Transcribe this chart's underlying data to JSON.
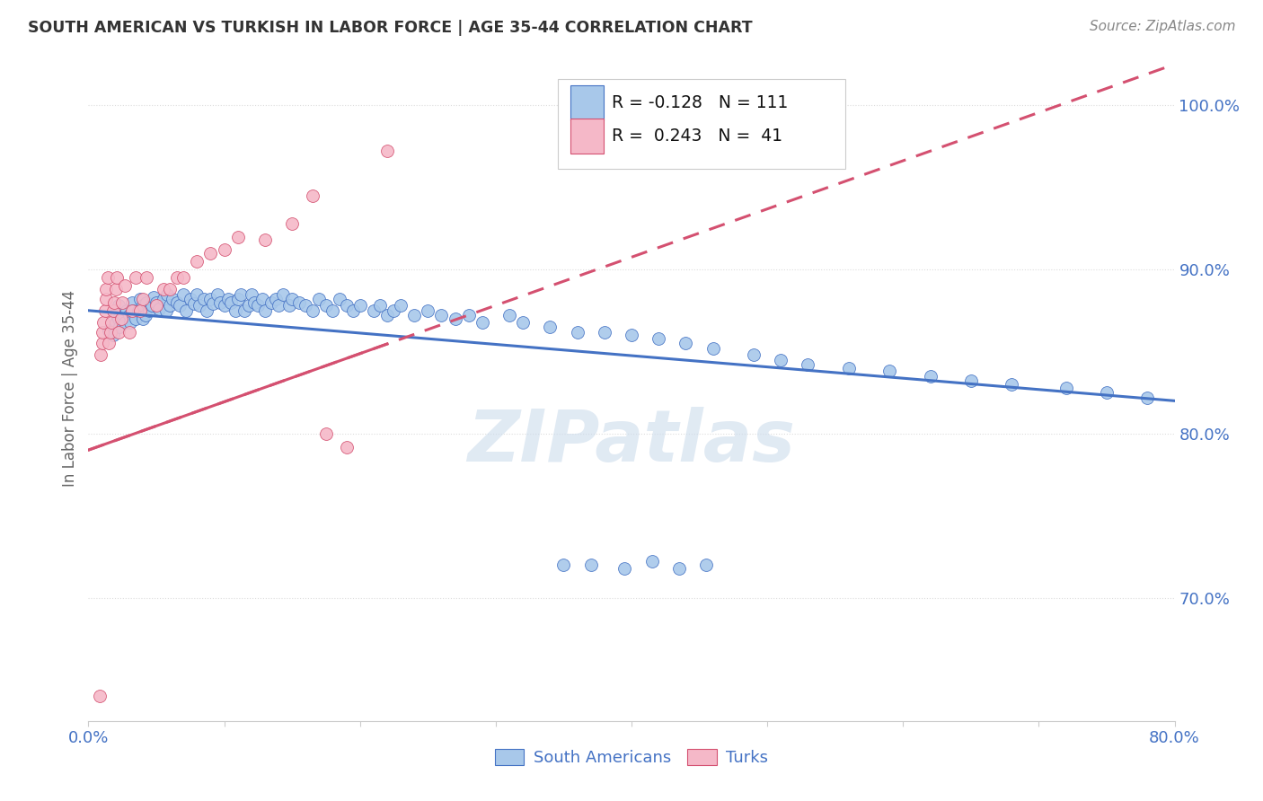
{
  "title": "SOUTH AMERICAN VS TURKISH IN LABOR FORCE | AGE 35-44 CORRELATION CHART",
  "source": "Source: ZipAtlas.com",
  "ylabel": "In Labor Force | Age 35-44",
  "ytick_labels": [
    "100.0%",
    "90.0%",
    "80.0%",
    "70.0%"
  ],
  "ytick_values": [
    1.0,
    0.9,
    0.8,
    0.7
  ],
  "xlim": [
    0.0,
    0.8
  ],
  "ylim": [
    0.625,
    1.03
  ],
  "legend_blue_r": "-0.128",
  "legend_blue_n": "111",
  "legend_pink_r": "0.243",
  "legend_pink_n": "41",
  "blue_scatter_color": "#a8c8ea",
  "pink_scatter_color": "#f5b8c8",
  "blue_line_color": "#4472c4",
  "pink_line_color": "#d45070",
  "text_color": "#4472c4",
  "title_color": "#333333",
  "source_color": "#888888",
  "watermark_color": "#ccdcec",
  "watermark_text": "ZIPatlas",
  "grid_color": "#dddddd",
  "blue_scatter_x": [
    0.015,
    0.018,
    0.02,
    0.02,
    0.021,
    0.022,
    0.022,
    0.023,
    0.025,
    0.027,
    0.028,
    0.03,
    0.031,
    0.032,
    0.033,
    0.035,
    0.037,
    0.038,
    0.04,
    0.04,
    0.042,
    0.043,
    0.045,
    0.047,
    0.048,
    0.05,
    0.052,
    0.055,
    0.057,
    0.058,
    0.06,
    0.062,
    0.065,
    0.067,
    0.07,
    0.072,
    0.075,
    0.078,
    0.08,
    0.082,
    0.085,
    0.087,
    0.09,
    0.092,
    0.095,
    0.097,
    0.1,
    0.103,
    0.105,
    0.108,
    0.11,
    0.112,
    0.115,
    0.118,
    0.12,
    0.122,
    0.125,
    0.128,
    0.13,
    0.135,
    0.138,
    0.14,
    0.143,
    0.148,
    0.15,
    0.155,
    0.16,
    0.165,
    0.17,
    0.175,
    0.18,
    0.185,
    0.19,
    0.195,
    0.2,
    0.21,
    0.215,
    0.22,
    0.225,
    0.23,
    0.24,
    0.25,
    0.26,
    0.27,
    0.28,
    0.29,
    0.31,
    0.32,
    0.34,
    0.36,
    0.38,
    0.4,
    0.42,
    0.44,
    0.46,
    0.49,
    0.51,
    0.53,
    0.56,
    0.59,
    0.62,
    0.65,
    0.68,
    0.72,
    0.75,
    0.78,
    0.35,
    0.37,
    0.395,
    0.415,
    0.435,
    0.455
  ],
  "blue_scatter_y": [
    0.863,
    0.86,
    0.875,
    0.868,
    0.872,
    0.87,
    0.878,
    0.865,
    0.873,
    0.868,
    0.875,
    0.872,
    0.868,
    0.88,
    0.875,
    0.87,
    0.875,
    0.882,
    0.87,
    0.878,
    0.872,
    0.88,
    0.875,
    0.878,
    0.883,
    0.88,
    0.876,
    0.882,
    0.875,
    0.885,
    0.878,
    0.882,
    0.88,
    0.878,
    0.885,
    0.875,
    0.882,
    0.879,
    0.885,
    0.878,
    0.882,
    0.875,
    0.882,
    0.879,
    0.885,
    0.88,
    0.878,
    0.882,
    0.88,
    0.875,
    0.882,
    0.885,
    0.875,
    0.878,
    0.885,
    0.88,
    0.878,
    0.882,
    0.875,
    0.88,
    0.882,
    0.878,
    0.885,
    0.878,
    0.882,
    0.88,
    0.878,
    0.875,
    0.882,
    0.878,
    0.875,
    0.882,
    0.878,
    0.875,
    0.878,
    0.875,
    0.878,
    0.872,
    0.875,
    0.878,
    0.872,
    0.875,
    0.872,
    0.87,
    0.872,
    0.868,
    0.872,
    0.868,
    0.865,
    0.862,
    0.862,
    0.86,
    0.858,
    0.855,
    0.852,
    0.848,
    0.845,
    0.842,
    0.84,
    0.838,
    0.835,
    0.832,
    0.83,
    0.828,
    0.825,
    0.822,
    0.72,
    0.72,
    0.718,
    0.722,
    0.718,
    0.72
  ],
  "pink_scatter_x": [
    0.008,
    0.009,
    0.01,
    0.01,
    0.011,
    0.012,
    0.013,
    0.013,
    0.014,
    0.015,
    0.016,
    0.017,
    0.018,
    0.019,
    0.02,
    0.021,
    0.022,
    0.024,
    0.025,
    0.027,
    0.03,
    0.032,
    0.035,
    0.038,
    0.04,
    0.043,
    0.05,
    0.055,
    0.06,
    0.065,
    0.07,
    0.08,
    0.09,
    0.1,
    0.11,
    0.13,
    0.15,
    0.165,
    0.175,
    0.19,
    0.22
  ],
  "pink_scatter_y": [
    0.64,
    0.848,
    0.855,
    0.862,
    0.868,
    0.875,
    0.882,
    0.888,
    0.895,
    0.855,
    0.862,
    0.868,
    0.875,
    0.88,
    0.888,
    0.895,
    0.862,
    0.87,
    0.88,
    0.89,
    0.862,
    0.875,
    0.895,
    0.875,
    0.882,
    0.895,
    0.878,
    0.888,
    0.888,
    0.895,
    0.895,
    0.905,
    0.91,
    0.912,
    0.92,
    0.918,
    0.928,
    0.945,
    0.8,
    0.792,
    0.972
  ],
  "blue_trend_x0": 0.0,
  "blue_trend_x1": 0.8,
  "blue_trend_y0": 0.875,
  "blue_trend_y1": 0.82,
  "pink_trend_x0": 0.0,
  "pink_trend_x1": 0.8,
  "pink_trend_y0": 0.79,
  "pink_trend_y1": 1.025
}
